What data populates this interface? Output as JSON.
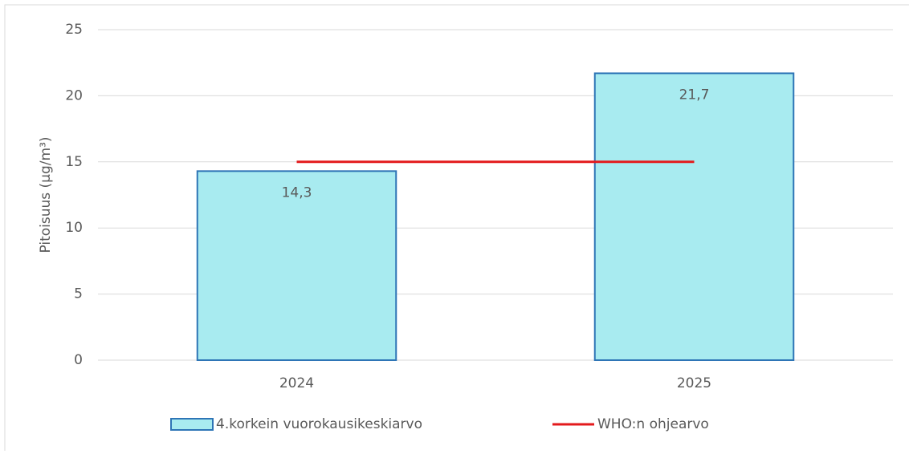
{
  "chart_data": {
    "type": "bar",
    "categories": [
      "2024",
      "2025"
    ],
    "y_label": "Pitoisuus (µg/m³)",
    "series": [
      {
        "name": "4.korkein vuorokausikeskiarvo",
        "type": "bar",
        "color": "#a8ebf0",
        "edge_color": "#2e75b6",
        "values": [
          14.3,
          21.7
        ],
        "value_labels": [
          "14,3",
          "21,7"
        ]
      },
      {
        "name": "WHO:n ohjearvo",
        "type": "line",
        "color": "#e31a1c",
        "values": [
          15,
          15
        ]
      }
    ],
    "ylim": [
      0,
      25
    ],
    "yticks": [
      0,
      5,
      10,
      15,
      20,
      25
    ],
    "grid": true,
    "legend": "bottom"
  }
}
